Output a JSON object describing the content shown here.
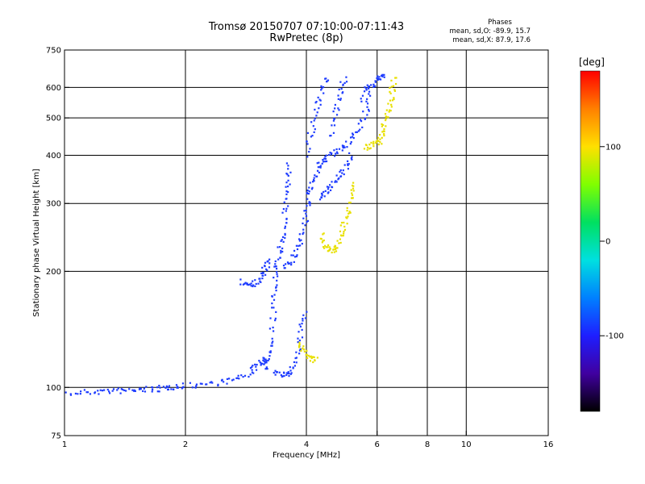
{
  "chart_data": {
    "type": "scatter",
    "title": "Tromsø 20150707 07:10:00-07:11:43",
    "subtitle": "RwPretec (8p)",
    "stats": {
      "heading": "Phases",
      "o_mode": "mean, sd,O: -89.9, 15.7",
      "x_mode": "mean, sd,X:  87.9, 17.6"
    },
    "xlabel": "Frequency [MHz]",
    "ylabel": "Stationary phase Virtual Height [km]",
    "x_scale": "log",
    "y_scale": "log",
    "xlim": [
      1,
      16
    ],
    "ylim": [
      75,
      750
    ],
    "xticks": [
      1,
      2,
      4,
      6,
      8,
      10,
      16
    ],
    "yticks": [
      75,
      100,
      200,
      300,
      400,
      500,
      600,
      750
    ],
    "xgrid": [
      2,
      4,
      6,
      8,
      10
    ],
    "ygrid": [
      100,
      200,
      300,
      400,
      500,
      600
    ],
    "grid": true,
    "colorbar": {
      "label": "[deg]",
      "range": [
        -180,
        180
      ],
      "ticks": [
        100,
        0,
        -100
      ],
      "colormap": "rainbow"
    },
    "series": [
      {
        "color": "#1e3cff",
        "phase": -100,
        "traces": [
          [
            [
              1.0,
              96
            ],
            [
              1.1,
              97
            ],
            [
              1.2,
              97.5
            ],
            [
              1.3,
              98
            ],
            [
              1.4,
              98
            ],
            [
              1.5,
              98.5
            ],
            [
              1.6,
              99
            ],
            [
              1.7,
              99
            ],
            [
              1.8,
              100
            ],
            [
              1.9,
              100.5
            ],
            [
              2.0,
              101
            ],
            [
              2.2,
              102
            ],
            [
              2.4,
              103
            ],
            [
              2.6,
              104.5
            ],
            [
              2.8,
              107
            ],
            [
              2.95,
              111
            ],
            [
              3.05,
              115
            ],
            [
              3.15,
              118
            ],
            [
              3.2,
              116
            ]
          ],
          [
            [
              2.75,
              188
            ],
            [
              2.85,
              186
            ],
            [
              2.95,
              186
            ],
            [
              3.05,
              190
            ],
            [
              3.12,
              198
            ],
            [
              3.18,
              205
            ],
            [
              3.22,
              215
            ]
          ],
          [
            [
              3.15,
              112
            ],
            [
              3.2,
              118
            ],
            [
              3.25,
              130
            ],
            [
              3.3,
              150
            ],
            [
              3.33,
              170
            ],
            [
              3.35,
              190
            ],
            [
              3.38,
              205
            ],
            [
              3.42,
              220
            ],
            [
              3.48,
              240
            ],
            [
              3.52,
              260
            ],
            [
              3.55,
              290
            ],
            [
              3.57,
              320
            ],
            [
              3.6,
              350
            ],
            [
              3.62,
              380
            ]
          ],
          [
            [
              3.35,
              110
            ],
            [
              3.45,
              108
            ],
            [
              3.55,
              108
            ],
            [
              3.65,
              110
            ],
            [
              3.75,
              118
            ],
            [
              3.85,
              130
            ],
            [
              3.9,
              145
            ],
            [
              3.95,
              160
            ]
          ],
          [
            [
              3.55,
              205
            ],
            [
              3.65,
              210
            ],
            [
              3.75,
              222
            ],
            [
              3.85,
              240
            ],
            [
              3.95,
              260
            ],
            [
              4.0,
              285
            ],
            [
              4.05,
              310
            ],
            [
              4.1,
              330
            ],
            [
              4.2,
              355
            ],
            [
              4.3,
              375
            ],
            [
              4.4,
              390
            ],
            [
              4.6,
              400
            ],
            [
              4.8,
              410
            ],
            [
              5.0,
              420
            ],
            [
              5.2,
              440
            ],
            [
              5.4,
              470
            ],
            [
              5.6,
              510
            ],
            [
              5.75,
              560
            ],
            [
              5.85,
              620
            ]
          ],
          [
            [
              4.0,
              400
            ],
            [
              4.1,
              450
            ],
            [
              4.2,
              500
            ],
            [
              4.3,
              550
            ],
            [
              4.4,
              600
            ],
            [
              4.5,
              640
            ]
          ],
          [
            [
              4.6,
              450
            ],
            [
              4.7,
              500
            ],
            [
              4.8,
              550
            ],
            [
              4.9,
              600
            ],
            [
              5.0,
              640
            ]
          ],
          [
            [
              4.3,
              310
            ],
            [
              4.45,
              320
            ],
            [
              4.6,
              330
            ],
            [
              4.75,
              345
            ],
            [
              4.9,
              360
            ],
            [
              5.05,
              380
            ],
            [
              5.2,
              410
            ]
          ],
          [
            [
              5.5,
              560
            ],
            [
              5.7,
              600
            ],
            [
              5.9,
              620
            ],
            [
              6.1,
              640
            ],
            [
              6.3,
              645
            ]
          ]
        ]
      },
      {
        "color": "#e8e000",
        "phase": 100,
        "traces": [
          [
            [
              4.35,
              250
            ],
            [
              4.45,
              235
            ],
            [
              4.55,
              228
            ],
            [
              4.65,
              226
            ],
            [
              4.75,
              232
            ],
            [
              4.85,
              245
            ],
            [
              4.95,
              260
            ],
            [
              5.05,
              275
            ],
            [
              5.12,
              295
            ],
            [
              5.18,
              320
            ],
            [
              5.22,
              340
            ]
          ],
          [
            [
              5.6,
              420
            ],
            [
              5.8,
              425
            ],
            [
              6.0,
              430
            ],
            [
              6.1,
              440
            ],
            [
              6.2,
              460
            ],
            [
              6.3,
              490
            ],
            [
              6.4,
              520
            ],
            [
              6.5,
              560
            ],
            [
              6.55,
              600
            ],
            [
              6.6,
              640
            ]
          ],
          [
            [
              3.85,
              130
            ],
            [
              3.95,
              125
            ],
            [
              4.05,
              120
            ],
            [
              4.15,
              118
            ],
            [
              4.25,
              120
            ]
          ]
        ]
      }
    ]
  },
  "colorbar_colors": [
    "#ff0000",
    "#ff8000",
    "#ffe000",
    "#80ff00",
    "#00e060",
    "#00e0e0",
    "#0080ff",
    "#1e1eff",
    "#4000a0",
    "#000000"
  ]
}
